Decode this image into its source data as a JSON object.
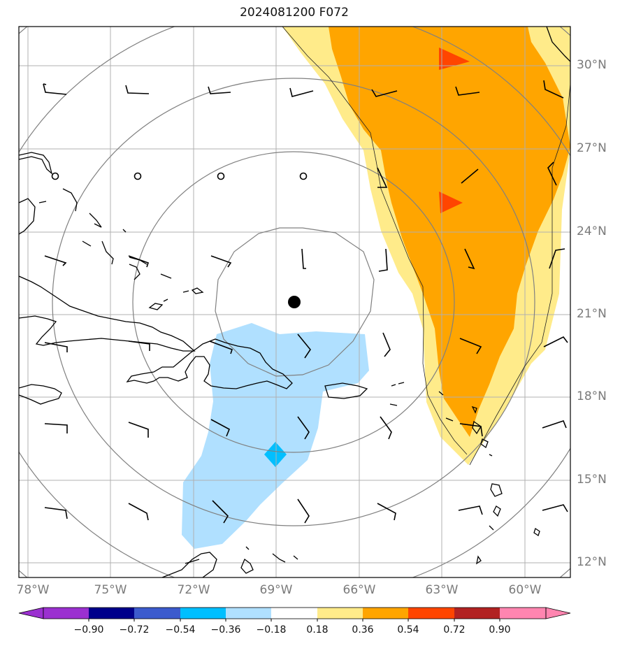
{
  "title": "2024081200 F072",
  "lat_labels": [
    "30°N",
    "27°N",
    "24°N",
    "21°N",
    "18°N",
    "15°N",
    "12°N"
  ],
  "lon_labels": [
    "78°W",
    "75°W",
    "72°W",
    "69°W",
    "66°W",
    "63°W",
    "60°W"
  ],
  "colorbar": {
    "ticks": [
      "−0.90",
      "−0.72",
      "−0.54",
      "−0.36",
      "−0.18",
      "0.18",
      "0.36",
      "0.54",
      "0.72",
      "0.90"
    ],
    "colors": [
      "#9b30d0",
      "#00008b",
      "#3c5bcd",
      "#00bfff",
      "#b0e0ff",
      "#ffffff",
      "#ffeb8a",
      "#ffa500",
      "#ff4500",
      "#b22222",
      "#ff85b0"
    ]
  },
  "shading_colors": {
    "positive_light": "#ffeb8a",
    "positive_mid": "#ffa500",
    "positive_high": "#ff4500",
    "negative_light": "#b0e0ff",
    "negative_mid": "#00bfff"
  }
}
